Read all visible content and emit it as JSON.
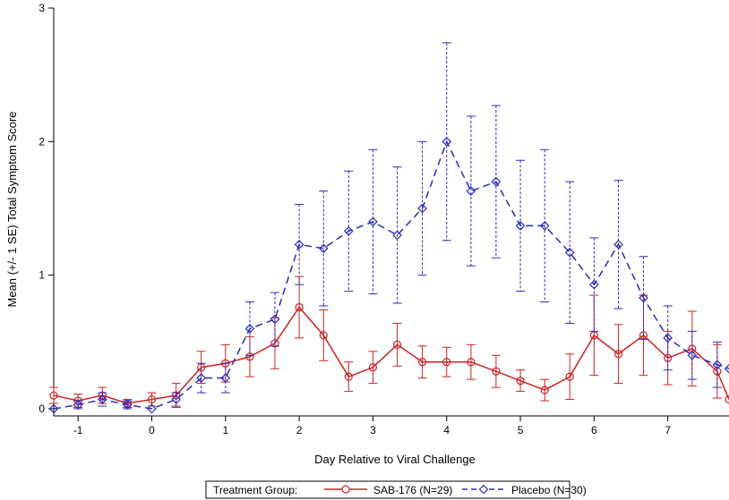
{
  "chart_data": {
    "type": "line",
    "xlabel": "Day Relative to Viral Challenge",
    "ylabel": "Mean (+/- 1 SE) Total Symptom Score",
    "xlim": [
      -1.33,
      7.83
    ],
    "ylim": [
      0,
      3
    ],
    "x_ticks": [
      "-1",
      "0",
      "1",
      "2",
      "3",
      "4",
      "5",
      "6",
      "7"
    ],
    "y_ticks": [
      "0",
      "1",
      "2",
      "3"
    ],
    "grid": false,
    "legend": {
      "title": "Treatment Group:",
      "placement": "bottom"
    },
    "series": [
      {
        "name": "SAB-176 (N=29)",
        "color": "#cc2222",
        "line_style": "solid",
        "marker": "circle",
        "x": [
          -1.33,
          -1.0,
          -0.67,
          -0.33,
          0.0,
          0.33,
          0.67,
          1.0,
          1.33,
          1.67,
          2.0,
          2.33,
          2.67,
          3.0,
          3.33,
          3.67,
          4.0,
          4.33,
          4.67,
          5.0,
          5.33,
          5.67,
          6.0,
          6.33,
          6.67,
          7.0,
          7.33,
          7.67,
          7.83
        ],
        "y": [
          0.1,
          0.06,
          0.1,
          0.04,
          0.07,
          0.1,
          0.31,
          0.34,
          0.39,
          0.49,
          0.76,
          0.55,
          0.24,
          0.31,
          0.48,
          0.35,
          0.35,
          0.35,
          0.28,
          0.21,
          0.14,
          0.24,
          0.55,
          0.41,
          0.55,
          0.38,
          0.45,
          0.28,
          0.07
        ],
        "error": [
          0.06,
          0.05,
          0.06,
          0.03,
          0.05,
          0.09,
          0.12,
          0.14,
          0.15,
          0.19,
          0.23,
          0.19,
          0.11,
          0.12,
          0.16,
          0.12,
          0.11,
          0.13,
          0.12,
          0.08,
          0.08,
          0.17,
          0.3,
          0.22,
          0.3,
          0.2,
          0.28,
          0.2,
          0.0
        ]
      },
      {
        "name": "Placebo (N=30)",
        "color": "#2b2bbf",
        "line_style": "dashed",
        "marker": "diamond",
        "x": [
          -1.33,
          -1.0,
          -0.67,
          -0.33,
          0.0,
          0.33,
          0.67,
          1.0,
          1.33,
          1.67,
          2.0,
          2.33,
          2.67,
          3.0,
          3.33,
          3.67,
          4.0,
          4.33,
          4.67,
          5.0,
          5.33,
          5.67,
          6.0,
          6.33,
          6.67,
          7.0,
          7.33,
          7.67,
          7.83
        ],
        "y": [
          0.0,
          0.03,
          0.07,
          0.03,
          0.0,
          0.07,
          0.23,
          0.23,
          0.6,
          0.67,
          1.23,
          1.2,
          1.33,
          1.4,
          1.3,
          1.5,
          2.0,
          1.63,
          1.7,
          1.37,
          1.37,
          1.17,
          0.93,
          1.23,
          0.83,
          0.53,
          0.4,
          0.33,
          0.3
        ],
        "error": [
          0.0,
          0.03,
          0.05,
          0.03,
          0.0,
          0.05,
          0.11,
          0.11,
          0.2,
          0.2,
          0.3,
          0.43,
          0.45,
          0.54,
          0.51,
          0.5,
          0.74,
          0.56,
          0.57,
          0.49,
          0.57,
          0.53,
          0.35,
          0.48,
          0.31,
          0.24,
          0.18,
          0.17,
          0.0
        ]
      }
    ]
  }
}
